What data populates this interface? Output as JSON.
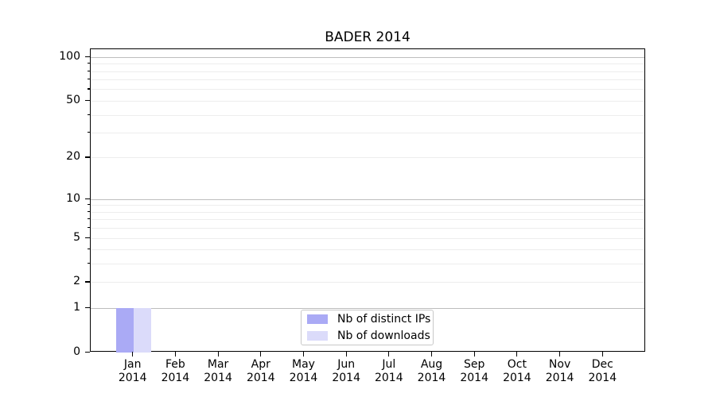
{
  "title": "BADER 2014",
  "chart_data": {
    "type": "bar",
    "title": "BADER 2014",
    "categories": [
      "Jan",
      "Feb",
      "Mar",
      "Apr",
      "May",
      "Jun",
      "Jul",
      "Aug",
      "Sep",
      "Oct",
      "Nov",
      "Dec"
    ],
    "category_year": "2014",
    "series": [
      {
        "name": "Nb of distinct IPs",
        "color": "#aaaaf5",
        "values": [
          1,
          0,
          0,
          0,
          0,
          0,
          0,
          0,
          0,
          0,
          0,
          0
        ]
      },
      {
        "name": "Nb of downloads",
        "color": "#dbdbfa",
        "values": [
          1,
          0,
          0,
          0,
          0,
          0,
          0,
          0,
          0,
          0,
          0,
          0
        ]
      }
    ],
    "yaxis": {
      "scale": "log1p",
      "tick_values": [
        0,
        1,
        2,
        5,
        10,
        20,
        50,
        100
      ],
      "major_grid_values": [
        1,
        10,
        100
      ],
      "minor_grid_values": [
        2,
        3,
        4,
        5,
        6,
        7,
        8,
        9,
        20,
        30,
        40,
        50,
        60,
        70,
        80,
        90
      ],
      "ylim": [
        0,
        113
      ]
    },
    "xlabel": "",
    "ylabel": "",
    "grid": {
      "horizontal": true,
      "vertical": false
    },
    "legend": {
      "position": "lower center"
    },
    "colors": {
      "bar_distinct_ips": "#aaaaf5",
      "bar_downloads": "#dbdbfa",
      "major_grid": "#bdbdbd",
      "minor_grid": "#ededed",
      "axis": "#000000",
      "legend_border": "#c8c8c8",
      "background": "#ffffff",
      "text": "#000000"
    }
  }
}
